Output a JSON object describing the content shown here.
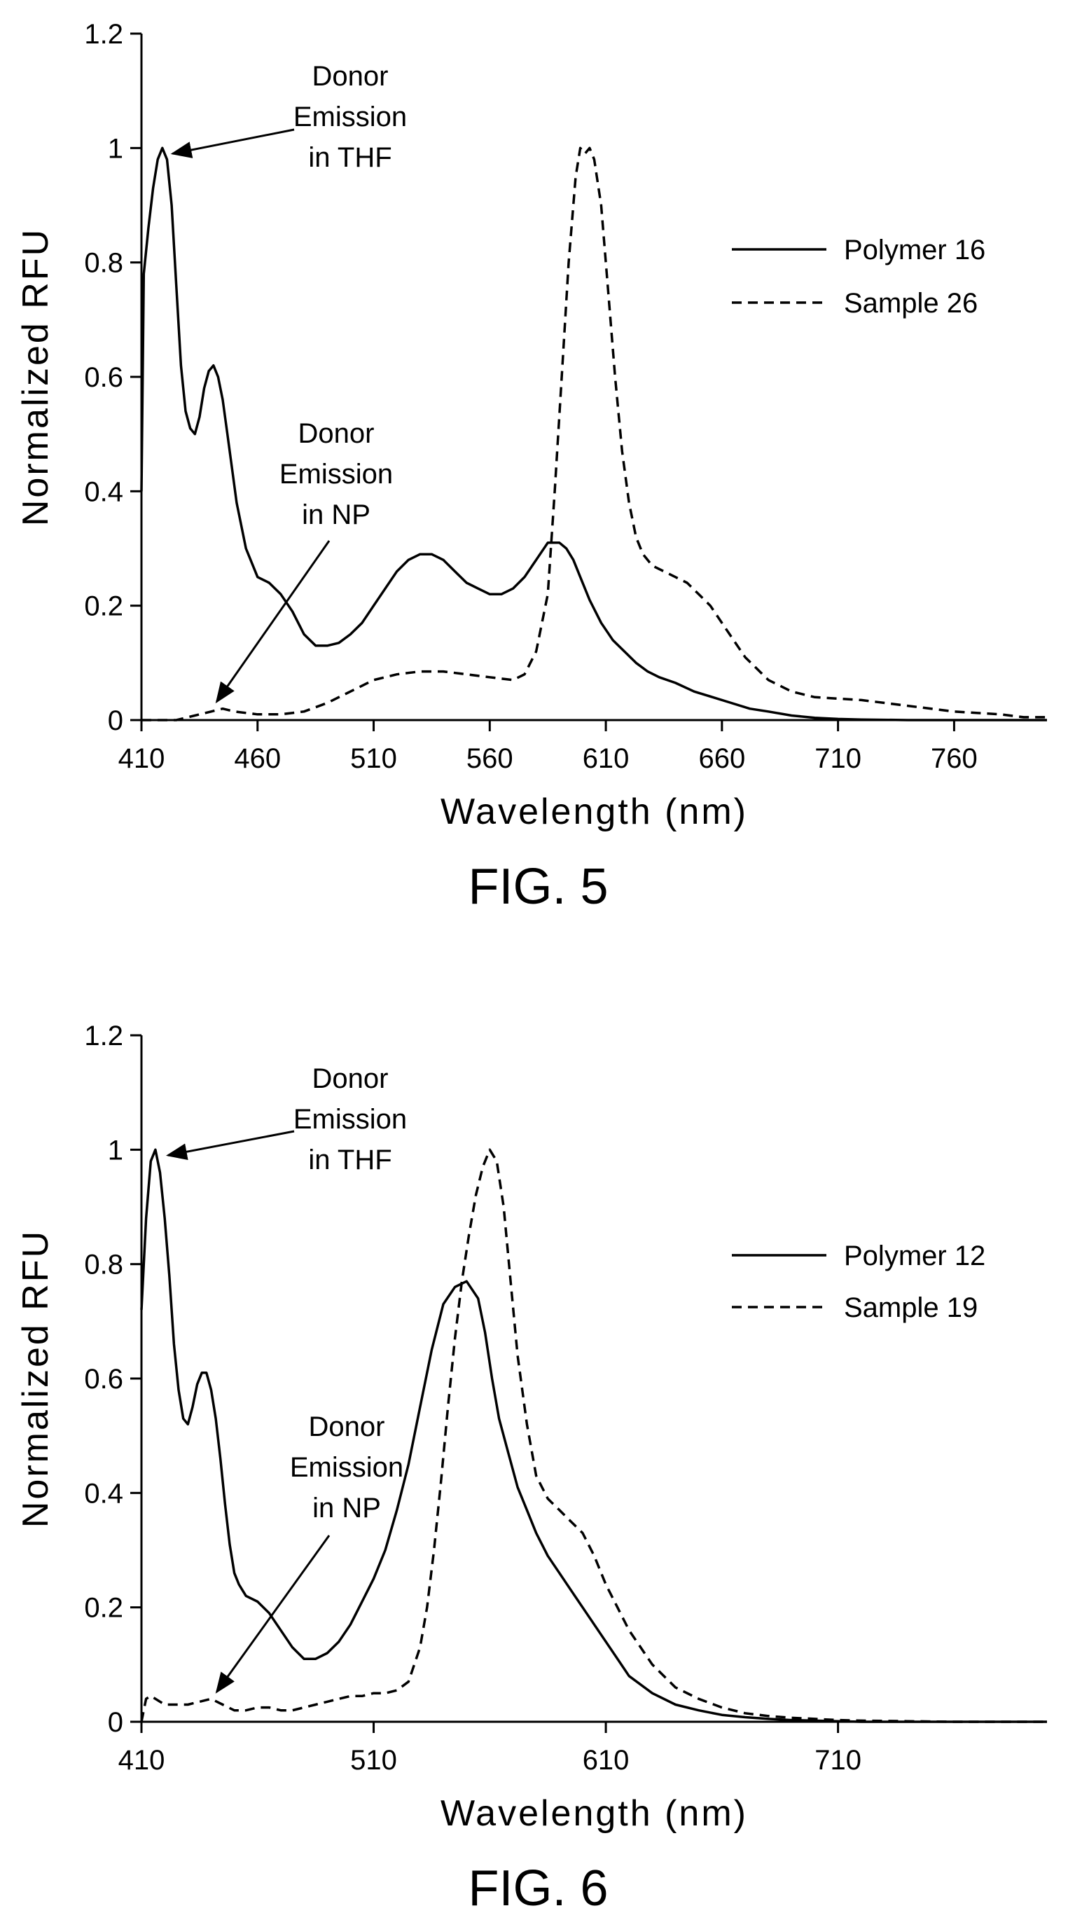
{
  "chart_data": [
    {
      "type": "line",
      "caption": "FIG. 5",
      "xlabel": "Wavelength (nm)",
      "ylabel": "Normalized RFU",
      "xlim": [
        410,
        800
      ],
      "ylim": [
        0,
        1.2
      ],
      "xticks": [
        410,
        460,
        510,
        560,
        610,
        660,
        710,
        760
      ],
      "yticks": [
        0,
        0.2,
        0.4,
        0.6,
        0.8,
        1,
        1.2
      ],
      "ytick_labels": [
        "0",
        "0.2",
        "0.4",
        "0.6",
        "0.8",
        "1",
        "1.2"
      ],
      "grid": false,
      "legend_position": "top-right",
      "series": [
        {
          "name": "Polymer 16",
          "style": "solid",
          "x": [
            410,
            411,
            413,
            415,
            417,
            419,
            421,
            423,
            425,
            427,
            429,
            431,
            433,
            435,
            437,
            439,
            441,
            443,
            445,
            447,
            449,
            451,
            455,
            460,
            465,
            470,
            475,
            480,
            485,
            490,
            495,
            500,
            505,
            510,
            515,
            520,
            525,
            530,
            535,
            540,
            545,
            550,
            555,
            560,
            565,
            570,
            575,
            580,
            585,
            590,
            593,
            596,
            599,
            603,
            608,
            613,
            618,
            623,
            628,
            633,
            640,
            648,
            656,
            664,
            672,
            680,
            690,
            700,
            710,
            720,
            740,
            760,
            780,
            800
          ],
          "y": [
            0.4,
            0.78,
            0.86,
            0.93,
            0.98,
            1.0,
            0.98,
            0.9,
            0.76,
            0.62,
            0.54,
            0.51,
            0.5,
            0.53,
            0.58,
            0.61,
            0.62,
            0.6,
            0.56,
            0.5,
            0.44,
            0.38,
            0.3,
            0.25,
            0.24,
            0.22,
            0.19,
            0.15,
            0.13,
            0.13,
            0.135,
            0.15,
            0.17,
            0.2,
            0.23,
            0.26,
            0.28,
            0.29,
            0.29,
            0.28,
            0.26,
            0.24,
            0.23,
            0.22,
            0.22,
            0.23,
            0.25,
            0.28,
            0.31,
            0.31,
            0.3,
            0.28,
            0.25,
            0.21,
            0.17,
            0.14,
            0.12,
            0.1,
            0.085,
            0.075,
            0.065,
            0.05,
            0.04,
            0.03,
            0.02,
            0.015,
            0.008,
            0.004,
            0.002,
            0.001,
            0.0,
            0.0,
            0.0,
            0.0
          ]
        },
        {
          "name": "Sample 26",
          "style": "dashed",
          "x": [
            410,
            415,
            420,
            425,
            430,
            435,
            440,
            445,
            450,
            460,
            470,
            480,
            490,
            500,
            510,
            520,
            530,
            540,
            550,
            560,
            570,
            575,
            580,
            585,
            588,
            591,
            594,
            597,
            599,
            601,
            603,
            605,
            608,
            611,
            614,
            617,
            620,
            623,
            626,
            630,
            635,
            640,
            645,
            650,
            655,
            660,
            665,
            670,
            680,
            690,
            700,
            720,
            740,
            760,
            780,
            790,
            800
          ],
          "y": [
            0.0,
            0.0,
            0.0,
            0.0,
            0.005,
            0.01,
            0.015,
            0.02,
            0.015,
            0.01,
            0.01,
            0.015,
            0.03,
            0.05,
            0.07,
            0.08,
            0.085,
            0.085,
            0.08,
            0.075,
            0.07,
            0.08,
            0.12,
            0.22,
            0.4,
            0.6,
            0.8,
            0.95,
            1.0,
            0.99,
            1.0,
            0.98,
            0.9,
            0.75,
            0.6,
            0.47,
            0.38,
            0.32,
            0.29,
            0.27,
            0.26,
            0.25,
            0.24,
            0.22,
            0.2,
            0.17,
            0.14,
            0.11,
            0.07,
            0.05,
            0.04,
            0.035,
            0.025,
            0.015,
            0.01,
            0.005,
            0.005
          ]
        }
      ],
      "annotations": [
        {
          "lines": [
            "Donor",
            "Emission",
            "in THF"
          ],
          "target": {
            "x": 418,
            "y": 1.0
          }
        },
        {
          "lines": [
            "Donor",
            "Emission",
            "in NP"
          ],
          "target": {
            "x": 440,
            "y": 0.02
          }
        }
      ]
    },
    {
      "type": "line",
      "caption": "FIG. 6",
      "xlabel": "Wavelength (nm)",
      "ylabel": "Normalized RFU",
      "xlim": [
        410,
        800
      ],
      "ylim": [
        0,
        1.2
      ],
      "xticks": [
        410,
        510,
        610,
        710
      ],
      "yticks": [
        0,
        0.2,
        0.4,
        0.6,
        0.8,
        1,
        1.2
      ],
      "ytick_labels": [
        "0",
        "0.2",
        "0.4",
        "0.6",
        "0.8",
        "1",
        "1.2"
      ],
      "grid": false,
      "legend_position": "top-right",
      "series": [
        {
          "name": "Polymer 12",
          "style": "solid",
          "x": [
            410,
            412,
            414,
            416,
            418,
            420,
            422,
            424,
            426,
            428,
            430,
            432,
            434,
            436,
            438,
            440,
            442,
            444,
            446,
            448,
            450,
            452,
            455,
            460,
            465,
            470,
            475,
            480,
            485,
            490,
            495,
            500,
            505,
            510,
            515,
            520,
            525,
            530,
            535,
            540,
            545,
            550,
            555,
            558,
            561,
            564,
            568,
            572,
            576,
            580,
            585,
            590,
            595,
            600,
            605,
            610,
            615,
            620,
            630,
            640,
            650,
            660,
            670,
            680,
            690,
            700,
            710,
            720,
            740,
            760,
            780,
            800
          ],
          "y": [
            0.72,
            0.88,
            0.98,
            1.0,
            0.96,
            0.88,
            0.78,
            0.66,
            0.58,
            0.53,
            0.52,
            0.55,
            0.59,
            0.61,
            0.61,
            0.58,
            0.53,
            0.46,
            0.38,
            0.31,
            0.26,
            0.24,
            0.22,
            0.21,
            0.19,
            0.16,
            0.13,
            0.11,
            0.11,
            0.12,
            0.14,
            0.17,
            0.21,
            0.25,
            0.3,
            0.37,
            0.45,
            0.55,
            0.65,
            0.73,
            0.76,
            0.77,
            0.74,
            0.68,
            0.6,
            0.53,
            0.47,
            0.41,
            0.37,
            0.33,
            0.29,
            0.26,
            0.23,
            0.2,
            0.17,
            0.14,
            0.11,
            0.08,
            0.05,
            0.03,
            0.02,
            0.012,
            0.008,
            0.005,
            0.003,
            0.002,
            0.001,
            0.0,
            0.0,
            0.0,
            0.0,
            0.0
          ]
        },
        {
          "name": "Sample 19",
          "style": "dashed",
          "x": [
            410,
            412,
            414,
            416,
            420,
            425,
            430,
            435,
            440,
            445,
            450,
            455,
            460,
            465,
            470,
            475,
            480,
            485,
            490,
            495,
            500,
            505,
            510,
            515,
            520,
            525,
            530,
            533,
            536,
            539,
            542,
            545,
            548,
            551,
            554,
            557,
            560,
            563,
            566,
            569,
            572,
            576,
            580,
            585,
            590,
            595,
            600,
            605,
            610,
            615,
            620,
            630,
            640,
            650,
            660,
            670,
            680,
            690,
            700,
            710,
            720,
            740,
            760,
            780,
            800
          ],
          "y": [
            0.0,
            0.04,
            0.045,
            0.04,
            0.03,
            0.03,
            0.03,
            0.035,
            0.04,
            0.03,
            0.02,
            0.02,
            0.025,
            0.025,
            0.02,
            0.02,
            0.025,
            0.03,
            0.035,
            0.04,
            0.045,
            0.045,
            0.05,
            0.05,
            0.055,
            0.07,
            0.13,
            0.2,
            0.3,
            0.42,
            0.55,
            0.67,
            0.77,
            0.85,
            0.92,
            0.97,
            1.0,
            0.98,
            0.9,
            0.77,
            0.64,
            0.52,
            0.43,
            0.39,
            0.37,
            0.35,
            0.33,
            0.29,
            0.24,
            0.2,
            0.16,
            0.1,
            0.06,
            0.04,
            0.025,
            0.015,
            0.01,
            0.007,
            0.005,
            0.003,
            0.002,
            0.001,
            0.0,
            0.0,
            0.0
          ]
        }
      ],
      "annotations": [
        {
          "lines": [
            "Donor",
            "Emission",
            "in THF"
          ],
          "target": {
            "x": 416,
            "y": 1.0
          }
        },
        {
          "lines": [
            "Donor",
            "Emission",
            "in NP"
          ],
          "target": {
            "x": 440,
            "y": 0.04
          }
        }
      ]
    }
  ]
}
